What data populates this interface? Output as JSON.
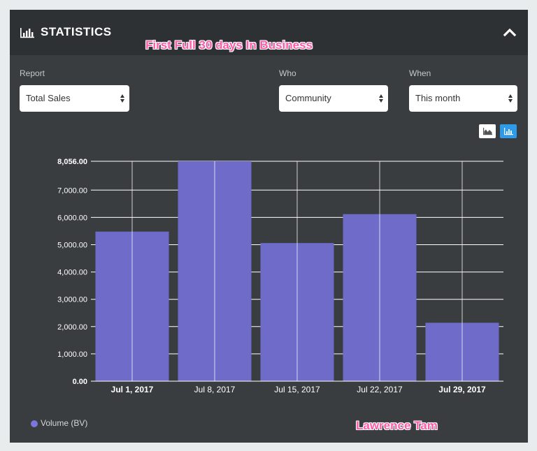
{
  "header": {
    "title": "STATISTICS",
    "icon": "bar-chart-icon",
    "collapse_icon": "chevron-up-icon"
  },
  "annotations": {
    "top": "First Full 30 days In Business",
    "bottom": "Lawrence Tam"
  },
  "filters": {
    "report": {
      "label": "Report",
      "value": "Total Sales"
    },
    "who": {
      "label": "Who",
      "value": "Community"
    },
    "when": {
      "label": "When",
      "value": "This month"
    }
  },
  "view_toggle": {
    "options": [
      "area-chart-icon",
      "bar-chart-icon"
    ],
    "active": "bar-chart-icon"
  },
  "colors": {
    "bar": "#6e6bc9",
    "background": "#3a3d40",
    "header": "#2e3134",
    "accent": "#2e9be8",
    "annotation": "#ff5aa8"
  },
  "chart_data": {
    "type": "bar",
    "categories": [
      "Jul 1, 2017",
      "Jul 8, 2017",
      "Jul 15, 2017",
      "Jul 22, 2017",
      "Jul 29, 2017"
    ],
    "bold_categories": [
      "Jul 1, 2017",
      "Jul 29, 2017"
    ],
    "series": [
      {
        "name": "Volume (BV)",
        "values": [
          5480,
          8056,
          5060,
          6120,
          2140
        ]
      }
    ],
    "yticks": [
      0,
      1000,
      2000,
      3000,
      4000,
      5000,
      6000,
      7000,
      8056
    ],
    "ytick_labels": [
      "0.00",
      "1,000.00",
      "2,000.00",
      "3,000.00",
      "4,000.00",
      "5,000.00",
      "6,000.00",
      "7,000.00",
      "8,056.00"
    ],
    "ylim": [
      0,
      8056
    ],
    "grid": true,
    "legend": "bottom-left"
  }
}
